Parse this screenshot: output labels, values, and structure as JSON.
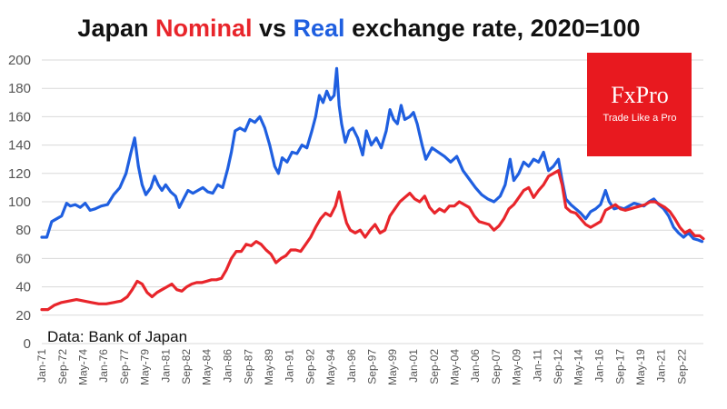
{
  "chart_data": {
    "type": "line",
    "title": {
      "part1": "Japan ",
      "part2": "Nominal",
      "part3": " vs ",
      "part4": "Real",
      "part5": " exchange rate, 2020=100"
    },
    "ylim": [
      0,
      200
    ],
    "yticks": [
      0,
      20,
      40,
      60,
      80,
      100,
      120,
      140,
      160,
      180,
      200
    ],
    "xlim": [
      1971.0,
      2024.4
    ],
    "xtick_labels": [
      "Jan-71",
      "Sep-72",
      "May-74",
      "Jan-76",
      "Sep-77",
      "May-79",
      "Jan-81",
      "Sep-82",
      "May-84",
      "Jan-86",
      "Sep-87",
      "May-89",
      "Jan-91",
      "Sep-92",
      "May-94",
      "Jan-96",
      "Sep-97",
      "May-99",
      "Jan-01",
      "Sep-02",
      "May-04",
      "Jan-06",
      "Sep-07",
      "May-09",
      "Jan-11",
      "Sep-12",
      "May-14",
      "Jan-16",
      "Sep-17",
      "May-19",
      "Jan-21",
      "Sep-22"
    ],
    "xtick_positions": [
      1971.0,
      1972.67,
      1974.33,
      1976.0,
      1977.67,
      1979.33,
      1981.0,
      1982.67,
      1984.33,
      1986.0,
      1987.67,
      1989.33,
      1991.0,
      1992.67,
      1994.33,
      1996.0,
      1997.67,
      1999.33,
      2001.0,
      2002.67,
      2004.33,
      2006.0,
      2007.67,
      2009.33,
      2011.0,
      2012.67,
      2014.33,
      2016.0,
      2017.67,
      2019.33,
      2021.0,
      2022.67
    ],
    "grid": "horizontal",
    "annotation": "Data: Bank of Japan",
    "series": [
      {
        "name": "Real",
        "color": "#1f5fe0",
        "x": [
          1971.0,
          1971.4,
          1971.8,
          1972.2,
          1972.6,
          1973.0,
          1973.3,
          1973.7,
          1974.1,
          1974.5,
          1974.9,
          1975.3,
          1975.8,
          1976.3,
          1976.8,
          1977.3,
          1977.8,
          1978.2,
          1978.5,
          1978.8,
          1979.1,
          1979.4,
          1979.8,
          1980.1,
          1980.4,
          1980.7,
          1981.0,
          1981.4,
          1981.8,
          1982.1,
          1982.5,
          1982.8,
          1983.2,
          1983.6,
          1984.0,
          1984.4,
          1984.8,
          1985.2,
          1985.6,
          1986.0,
          1986.3,
          1986.6,
          1987.0,
          1987.4,
          1987.8,
          1988.2,
          1988.6,
          1989.0,
          1989.4,
          1989.8,
          1990.1,
          1990.4,
          1990.8,
          1991.2,
          1991.6,
          1992.0,
          1992.4,
          1992.8,
          1993.1,
          1993.4,
          1993.7,
          1994.0,
          1994.3,
          1994.6,
          1994.8,
          1995.0,
          1995.2,
          1995.5,
          1995.8,
          1996.1,
          1996.5,
          1996.9,
          1997.2,
          1997.6,
          1998.0,
          1998.4,
          1998.8,
          1999.1,
          1999.4,
          1999.7,
          2000.0,
          2000.3,
          2000.7,
          2001.0,
          2001.3,
          2001.7,
          2002.0,
          2002.5,
          2003.0,
          2003.5,
          2004.0,
          2004.5,
          2005.0,
          2005.5,
          2006.0,
          2006.5,
          2007.0,
          2007.5,
          2008.0,
          2008.4,
          2008.8,
          2009.1,
          2009.5,
          2009.9,
          2010.3,
          2010.7,
          2011.1,
          2011.5,
          2011.9,
          2012.3,
          2012.7,
          2013.0,
          2013.3,
          2013.7,
          2014.1,
          2014.5,
          2014.9,
          2015.3,
          2015.7,
          2016.1,
          2016.5,
          2016.8,
          2017.2,
          2017.6,
          2018.0,
          2018.4,
          2018.8,
          2019.2,
          2019.6,
          2020.0,
          2020.4,
          2020.8,
          2021.2,
          2021.6,
          2022.0,
          2022.4,
          2022.8,
          2023.2,
          2023.6,
          2024.0,
          2024.3
        ],
        "values": [
          75,
          75,
          86,
          88,
          90,
          99,
          97,
          98,
          96,
          99,
          94,
          95,
          97,
          98,
          105,
          110,
          120,
          135,
          145,
          125,
          112,
          105,
          110,
          118,
          112,
          108,
          112,
          107,
          104,
          96,
          103,
          108,
          106,
          108,
          110,
          107,
          106,
          112,
          110,
          123,
          135,
          150,
          152,
          150,
          158,
          156,
          160,
          152,
          140,
          125,
          120,
          131,
          128,
          135,
          134,
          140,
          138,
          150,
          160,
          175,
          170,
          178,
          172,
          175,
          194,
          168,
          155,
          142,
          150,
          152,
          145,
          133,
          150,
          140,
          145,
          138,
          150,
          165,
          158,
          155,
          168,
          158,
          160,
          163,
          155,
          140,
          130,
          138,
          135,
          132,
          128,
          132,
          122,
          116,
          110,
          105,
          102,
          100,
          104,
          112,
          130,
          115,
          120,
          128,
          125,
          130,
          128,
          135,
          122,
          125,
          130,
          115,
          102,
          98,
          95,
          92,
          88,
          93,
          95,
          98,
          108,
          100,
          95,
          96,
          95,
          97,
          99,
          98,
          97,
          100,
          102,
          98,
          95,
          90,
          82,
          78,
          75,
          78,
          74,
          73,
          72
        ]
      },
      {
        "name": "Nominal",
        "color": "#e8252b",
        "x": [
          1971.0,
          1971.5,
          1972.0,
          1972.6,
          1973.2,
          1973.8,
          1974.4,
          1975.0,
          1975.6,
          1976.2,
          1976.8,
          1977.4,
          1977.9,
          1978.3,
          1978.7,
          1979.1,
          1979.5,
          1979.9,
          1980.3,
          1980.7,
          1981.1,
          1981.5,
          1981.9,
          1982.3,
          1982.7,
          1983.1,
          1983.5,
          1983.9,
          1984.3,
          1984.7,
          1985.1,
          1985.5,
          1985.9,
          1986.3,
          1986.7,
          1987.1,
          1987.5,
          1987.9,
          1988.3,
          1988.7,
          1989.1,
          1989.5,
          1989.9,
          1990.3,
          1990.7,
          1991.1,
          1991.5,
          1991.9,
          1992.3,
          1992.7,
          1993.1,
          1993.5,
          1993.9,
          1994.3,
          1994.7,
          1995.0,
          1995.3,
          1995.6,
          1995.9,
          1996.3,
          1996.7,
          1997.1,
          1997.5,
          1997.9,
          1998.3,
          1998.7,
          1999.1,
          1999.5,
          1999.9,
          2000.3,
          2000.7,
          2001.1,
          2001.5,
          2001.9,
          2002.3,
          2002.7,
          2003.1,
          2003.5,
          2003.9,
          2004.3,
          2004.7,
          2005.1,
          2005.5,
          2005.9,
          2006.3,
          2006.7,
          2007.1,
          2007.5,
          2007.9,
          2008.3,
          2008.7,
          2009.1,
          2009.5,
          2009.9,
          2010.3,
          2010.7,
          2011.1,
          2011.5,
          2011.9,
          2012.3,
          2012.7,
          2013.0,
          2013.3,
          2013.7,
          2014.1,
          2014.5,
          2014.9,
          2015.3,
          2015.7,
          2016.1,
          2016.5,
          2016.9,
          2017.3,
          2017.7,
          2018.1,
          2018.5,
          2018.9,
          2019.3,
          2019.7,
          2020.1,
          2020.5,
          2020.9,
          2021.3,
          2021.7,
          2022.1,
          2022.5,
          2022.9,
          2023.3,
          2023.7,
          2024.1,
          2024.4
        ],
        "values": [
          24,
          24,
          27,
          29,
          30,
          31,
          30,
          29,
          28,
          28,
          29,
          30,
          33,
          38,
          44,
          42,
          36,
          33,
          36,
          38,
          40,
          42,
          38,
          37,
          40,
          42,
          43,
          43,
          44,
          45,
          45,
          46,
          52,
          60,
          65,
          65,
          70,
          69,
          72,
          70,
          66,
          63,
          57,
          60,
          62,
          66,
          66,
          65,
          70,
          75,
          82,
          88,
          92,
          90,
          97,
          107,
          95,
          85,
          80,
          78,
          80,
          75,
          80,
          84,
          78,
          80,
          90,
          95,
          100,
          103,
          106,
          102,
          100,
          104,
          96,
          92,
          95,
          93,
          97,
          97,
          100,
          98,
          96,
          90,
          86,
          85,
          84,
          80,
          83,
          88,
          95,
          98,
          103,
          108,
          110,
          103,
          108,
          112,
          118,
          120,
          122,
          112,
          96,
          93,
          92,
          88,
          84,
          82,
          84,
          86,
          94,
          96,
          98,
          95,
          94,
          95,
          96,
          97,
          98,
          100,
          100,
          98,
          96,
          93,
          88,
          82,
          78,
          80,
          76,
          76,
          74
        ]
      }
    ]
  },
  "logo": {
    "name": "FxPro",
    "tagline": "Trade Like a Pro",
    "color": "#e8191f"
  }
}
